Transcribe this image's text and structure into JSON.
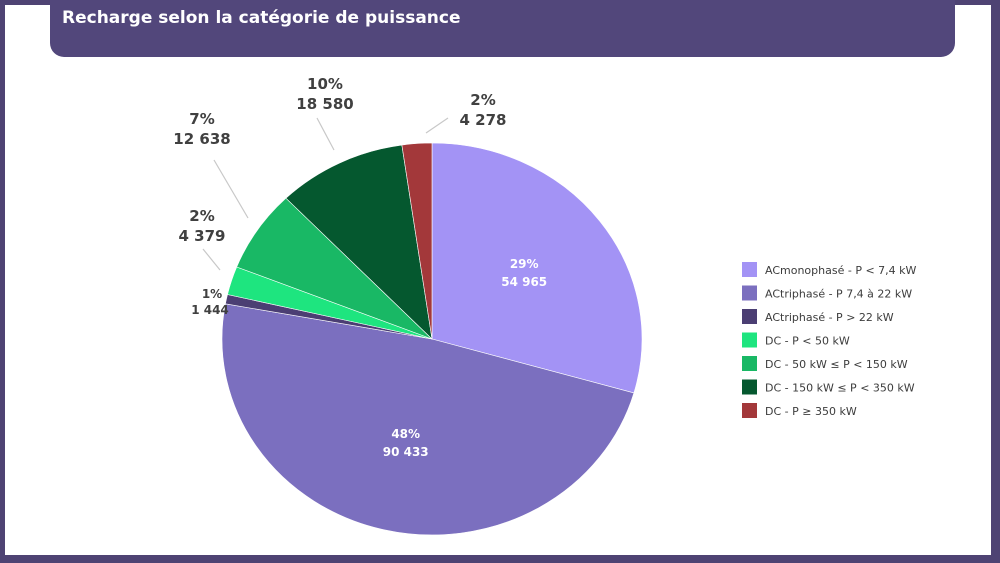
{
  "chart_data": {
    "type": "pie",
    "title": "Recharge selon la catégorie de puissance",
    "slices": [
      {
        "name": "ACmonophasé - P < 7,4 kW",
        "value": 54965,
        "pct_label": "29%",
        "value_label": "54 965",
        "color": "#a393f5"
      },
      {
        "name": "ACtriphasé - P 7,4 à 22 kW",
        "value": 90433,
        "pct_label": "48%",
        "value_label": "90 433",
        "color": "#7b6fbf"
      },
      {
        "name": "ACtriphasé - P > 22 kW",
        "value": 1444,
        "pct_label": "1%",
        "value_label": "1 444",
        "color": "#4b3e73"
      },
      {
        "name": "DC - P < 50 kW",
        "value": 4379,
        "pct_label": "2%",
        "value_label": "4 379",
        "color": "#1ee57f"
      },
      {
        "name": "DC - 50 kW ≤ P < 150 kW",
        "value": 12638,
        "pct_label": "7%",
        "value_label": "12 638",
        "color": "#19b865"
      },
      {
        "name": "DC - 150 kW  ≤ P < 350 kW",
        "value": 18580,
        "pct_label": "10%",
        "value_label": "18 580",
        "color": "#05582f"
      },
      {
        "name": "DC - P ≥ 350 kW",
        "value": 4278,
        "pct_label": "2%",
        "value_label": "4 278",
        "color": "#a3383a"
      }
    ],
    "legend_position": "right"
  }
}
